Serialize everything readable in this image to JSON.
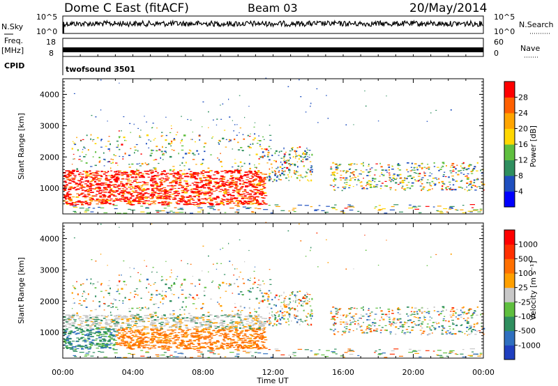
{
  "header": {
    "title": "Dome C East (fitACF)",
    "beam": "Beam 03",
    "date": "20/May/2014"
  },
  "nsky_panel": {
    "left_label": "N.Sky",
    "right_label": "N.Search",
    "top_tick": "10^5",
    "bottom_tick": "10^0"
  },
  "freq_panel": {
    "left_label": "Freq.",
    "left_unit": "[MHz]",
    "left_ticks": [
      "18",
      "8"
    ],
    "right_label": "Nave",
    "right_ticks": [
      "60",
      "0"
    ],
    "cpid_label": "CPID",
    "cpid_value": "twofsound 3501"
  },
  "chart_data": [
    {
      "type": "heatmap",
      "name": "power",
      "ylabel": "Slant Range [km]",
      "yticks": [
        "4000",
        "3000",
        "2000",
        "1000"
      ],
      "ylim": [
        180,
        4500
      ],
      "xlim": [
        0,
        24
      ],
      "colorbar_label": "Power [dB]",
      "colorbar_ticks": [
        "28",
        "24",
        "20",
        "16",
        "12",
        "8",
        "4"
      ],
      "colors": [
        "#0000ff",
        "#1f4fbf",
        "#2f8f5f",
        "#5fbf3f",
        "#ffd700",
        "#ffa500",
        "#ff6000",
        "#ff0000"
      ]
    },
    {
      "type": "heatmap",
      "name": "velocity",
      "ylabel": "Slant Range [km]",
      "yticks": [
        "4000",
        "3000",
        "2000",
        "1000"
      ],
      "ylim": [
        180,
        4500
      ],
      "xlim": [
        0,
        24
      ],
      "colorbar_label": "Velocity [m s⁻¹]",
      "colorbar_ticks": [
        "1000",
        "500",
        "100",
        "25",
        "-25",
        "-100",
        "-500",
        "-1000"
      ],
      "colors": [
        "#1f3fbf",
        "#2f6fbf",
        "#2f8f5f",
        "#5fbf3f",
        "#c8c8c8",
        "#ffa000",
        "#ff7000",
        "#ff3000",
        "#ff0000"
      ]
    }
  ],
  "xaxis": {
    "ticks": [
      "00:00",
      "04:00",
      "08:00",
      "12:00",
      "16:00",
      "20:00",
      "00:00"
    ],
    "label": "Time UT"
  }
}
